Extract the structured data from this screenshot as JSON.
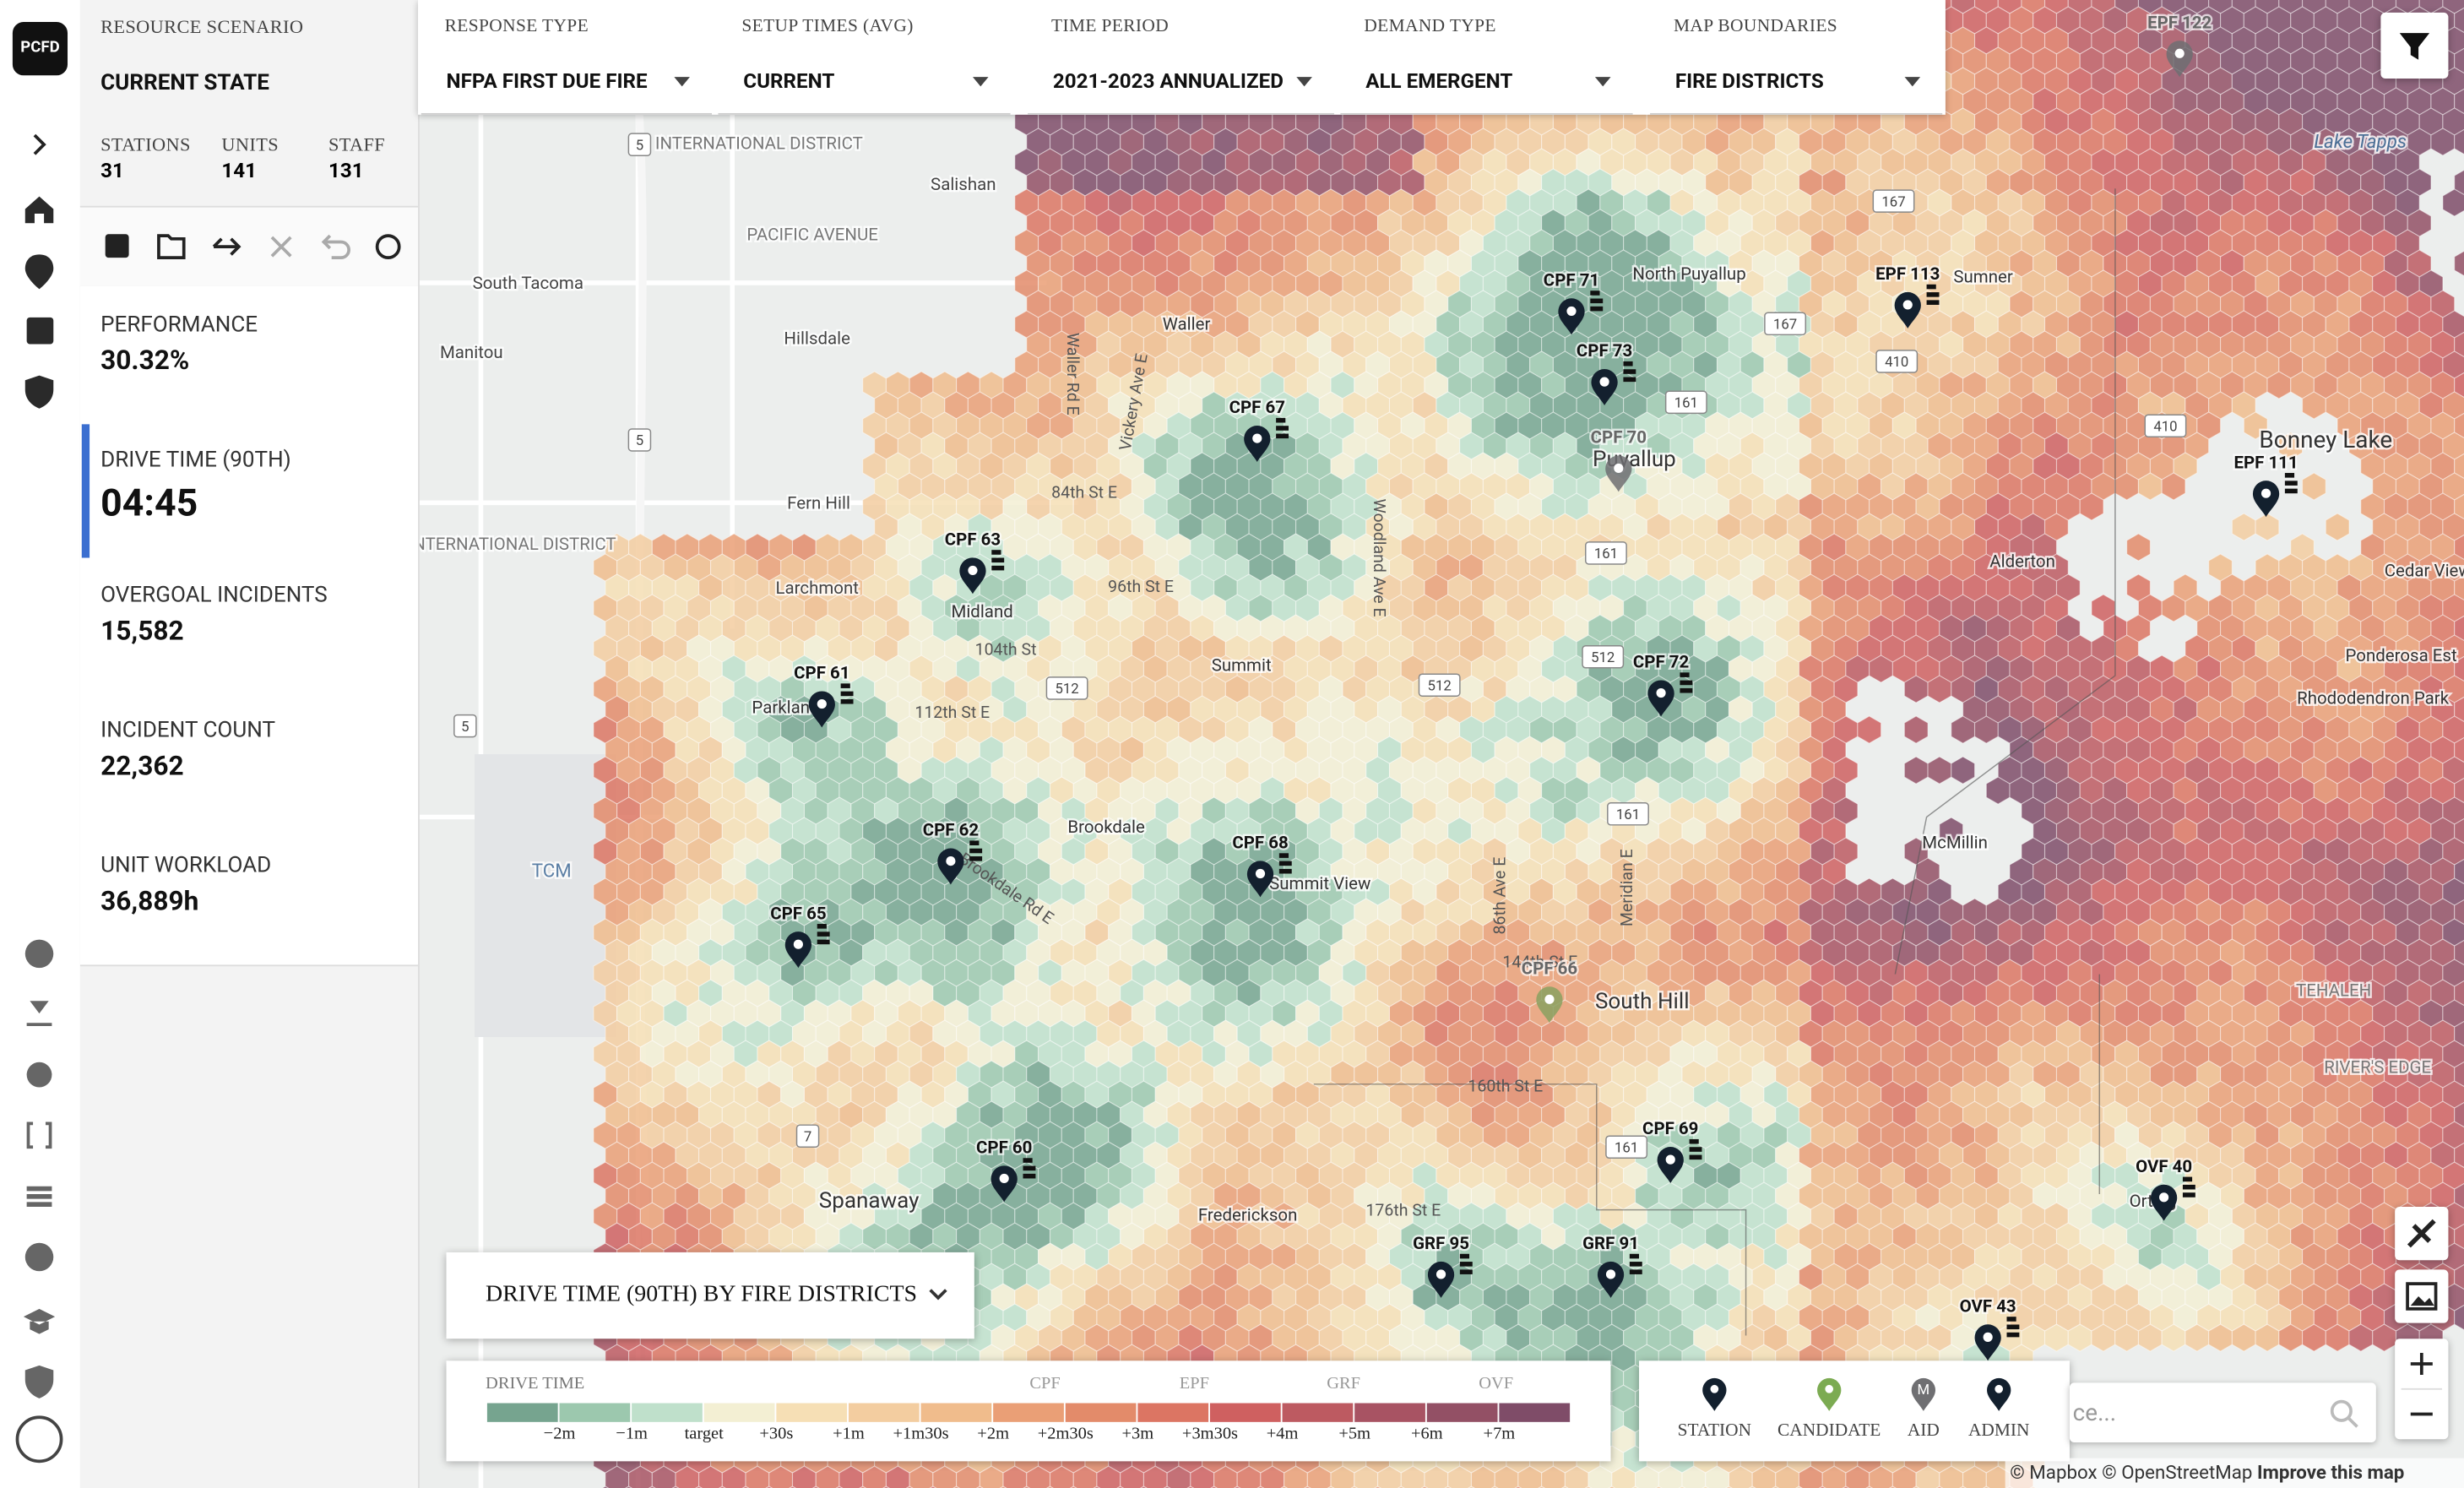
{
  "logo": "PCFD",
  "sidebar": {
    "scenario_label": "RESOURCE SCENARIO",
    "scenario": "CURRENT STATE",
    "stats": [
      {
        "label": "STATIONS",
        "value": "31"
      },
      {
        "label": "UNITS",
        "value": "141"
      },
      {
        "label": "STAFF",
        "value": "131"
      }
    ],
    "metrics": [
      {
        "label": "PERFORMANCE",
        "value": "30.32%"
      },
      {
        "label": "DRIVE TIME (90TH)",
        "value": "04:45"
      },
      {
        "label": "OVERGOAL INCIDENTS",
        "value": "15,582"
      },
      {
        "label": "INCIDENT COUNT",
        "value": "22,362"
      },
      {
        "label": "UNIT WORKLOAD",
        "value": "36,889h"
      }
    ]
  },
  "filters": [
    {
      "label": "RESPONSE TYPE",
      "value": "NFPA FIRST DUE FIRE"
    },
    {
      "label": "SETUP TIMES (AVG)",
      "value": "CURRENT"
    },
    {
      "label": "TIME PERIOD",
      "value": "2021-2023 ANNUALIZED"
    },
    {
      "label": "DEMAND TYPE",
      "value": "ALL EMERGENT"
    },
    {
      "label": "MAP BOUNDARIES",
      "value": "FIRE DISTRICTS"
    }
  ],
  "map": {
    "stations": [
      "EPF 122",
      "CPF 71",
      "EPF 113",
      "CPF 73",
      "CPF 67",
      "CPF 70",
      "EPF 111",
      "CPF 63",
      "CPF 72",
      "CPF 61",
      "CPF 62",
      "CPF 68",
      "CPF 65",
      "CPF 66",
      "CPF 60",
      "CPF 69",
      "OVF 40",
      "GRF 95",
      "GRF 91",
      "OVF 43"
    ],
    "places": [
      "South Tacoma",
      "Manitou",
      "Hillsdale",
      "Fern Hill",
      "Larchmont",
      "Midland",
      "Parkland",
      "Summit",
      "Brookdale",
      "Summit View",
      "South Hill",
      "Spanaway",
      "Frederickson",
      "McMillin",
      "Alderton",
      "Bonney Lake",
      "Lake Tapps",
      "Sumner",
      "North Puyallup",
      "Puyallup",
      "Waller",
      "Salishan",
      "PACIFIC AVENUE",
      "INTERNATIONAL DISTRICT",
      "INTERNATIONAL DISTRICT",
      "TCM",
      "Ponderosa Est",
      "Rhododendron Park",
      "Cedar View",
      "TEHALEH",
      "RIVER'S EDGE",
      "Orting"
    ],
    "roads": [
      "84th St E",
      "96th St E",
      "104th St",
      "112th St E",
      "144th St E",
      "160th St E",
      "176th St E",
      "Brookdale Rd E",
      "Woodland Ave E",
      "Meridian E",
      "86th Ave E",
      "Waller Rd E",
      "Vickery Ave E"
    ],
    "shields": [
      "5",
      "5",
      "5",
      "167",
      "167",
      "161",
      "161",
      "410",
      "410",
      "512",
      "512",
      "512",
      "161",
      "161",
      "7"
    ],
    "attribution": [
      "© Mapbox",
      "© OpenStreetMap",
      "Improve this map"
    ]
  },
  "panel_title": "DRIVE TIME (90TH) BY FIRE DISTRICTS",
  "legend": {
    "title": "DRIVE TIME",
    "groups": [
      "CPF",
      "EPF",
      "GRF",
      "OVF"
    ],
    "colors": [
      "#76a48f",
      "#9cc8ae",
      "#bfe0cb",
      "#f3efd3",
      "#f6dfb5",
      "#f3cda0",
      "#f0bc8c",
      "#ea9f76",
      "#e38b6a",
      "#dc7563",
      "#cf6060",
      "#bd5a61",
      "#a85363",
      "#935065",
      "#7f4c68"
    ],
    "labels": [
      "−2m",
      "−1m",
      "target",
      "+30s",
      "+1m",
      "+1m30s",
      "+2m",
      "+2m30s",
      "+3m",
      "+3m30s",
      "+4m",
      "+5m",
      "+6m",
      "+7m"
    ]
  },
  "markers": [
    {
      "label": "STATION"
    },
    {
      "label": "CANDIDATE"
    },
    {
      "label": "AID",
      "glyph": "M"
    },
    {
      "label": "ADMIN"
    }
  ],
  "search_placeholder": "ce..."
}
